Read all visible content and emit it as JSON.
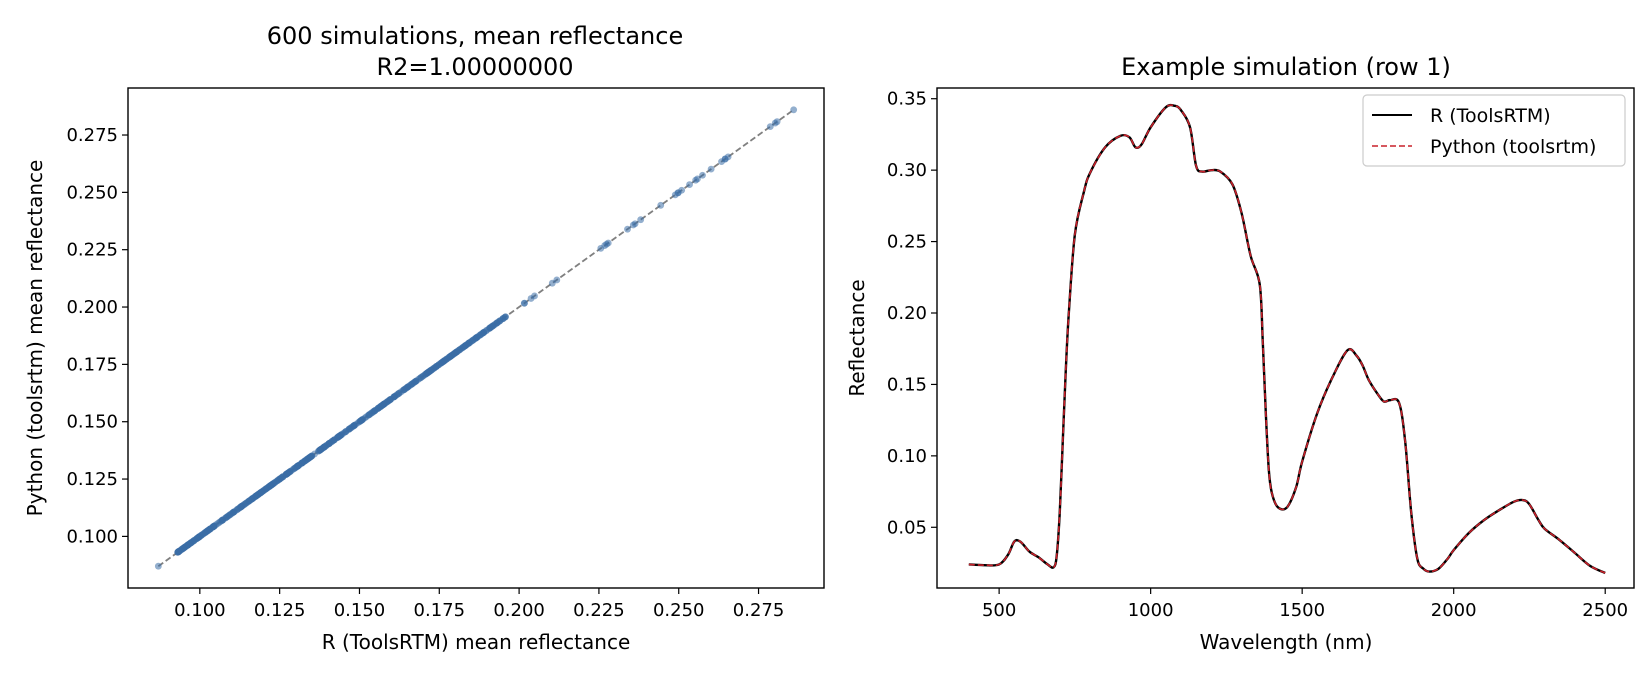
{
  "colors": {
    "scatter": "#3a6ea5",
    "diagonal": "#808080",
    "r_line": "#000000",
    "python_line": "#c8202a"
  },
  "chart_data": [
    {
      "type": "scatter",
      "title_line1": "600 simulations, mean reflectance",
      "title_line2": "R2=1.00000000",
      "xlabel": "R (ToolsRTM) mean reflectance",
      "ylabel": "Python (toolsrtm) mean reflectance",
      "xlim": [
        0.0775,
        0.2955
      ],
      "ylim": [
        0.0775,
        0.2955
      ],
      "xticks": [
        0.1,
        0.125,
        0.15,
        0.175,
        0.2,
        0.225,
        0.25,
        0.275
      ],
      "yticks": [
        0.1,
        0.125,
        0.15,
        0.175,
        0.2,
        0.225,
        0.25,
        0.275
      ],
      "tick_labels": [
        "0.100",
        "0.125",
        "0.150",
        "0.175",
        "0.200",
        "0.225",
        "0.250",
        "0.275"
      ],
      "n_points": 600,
      "x_range": [
        0.087,
        0.286
      ],
      "reference_line": "y = x (dashed)",
      "grid": false
    },
    {
      "type": "line",
      "title": "Example simulation (row 1)",
      "xlabel": "Wavelength (nm)",
      "ylabel": "Reflectance",
      "xlim": [
        295,
        2595
      ],
      "ylim": [
        0.0075,
        0.3575
      ],
      "xticks": [
        500,
        1000,
        1500,
        2000,
        2500
      ],
      "xtick_labels": [
        "500",
        "1000",
        "1500",
        "2000",
        "2500"
      ],
      "yticks": [
        0.05,
        0.1,
        0.15,
        0.2,
        0.25,
        0.3,
        0.35
      ],
      "ytick_labels": [
        "0.05",
        "0.10",
        "0.15",
        "0.20",
        "0.25",
        "0.30",
        "0.35"
      ],
      "legend_position": "upper right",
      "grid": false,
      "series": [
        {
          "name": "R (ToolsRTM)",
          "style": "solid"
        },
        {
          "name": "Python (toolsrtm)",
          "style": "dashed"
        }
      ],
      "x": [
        400,
        450,
        500,
        530,
        550,
        570,
        600,
        630,
        660,
        680,
        690,
        700,
        710,
        720,
        730,
        750,
        780,
        800,
        850,
        900,
        930,
        950,
        970,
        1000,
        1050,
        1080,
        1100,
        1130,
        1150,
        1170,
        1200,
        1230,
        1270,
        1300,
        1330,
        1360,
        1370,
        1380,
        1390,
        1400,
        1420,
        1450,
        1480,
        1500,
        1550,
        1600,
        1650,
        1680,
        1700,
        1720,
        1750,
        1770,
        1790,
        1820,
        1840,
        1860,
        1880,
        1900,
        1920,
        1950,
        1980,
        2000,
        2050,
        2100,
        2150,
        2200,
        2230,
        2250,
        2280,
        2300,
        2350,
        2400,
        2450,
        2500
      ],
      "y": [
        0.024,
        0.0235,
        0.024,
        0.031,
        0.04,
        0.04,
        0.033,
        0.029,
        0.024,
        0.022,
        0.03,
        0.06,
        0.11,
        0.16,
        0.2,
        0.255,
        0.285,
        0.298,
        0.316,
        0.324,
        0.323,
        0.316,
        0.318,
        0.33,
        0.344,
        0.345,
        0.342,
        0.33,
        0.303,
        0.299,
        0.3,
        0.299,
        0.29,
        0.27,
        0.24,
        0.22,
        0.18,
        0.13,
        0.09,
        0.074,
        0.064,
        0.064,
        0.078,
        0.096,
        0.13,
        0.155,
        0.174,
        0.17,
        0.163,
        0.153,
        0.143,
        0.138,
        0.139,
        0.137,
        0.11,
        0.06,
        0.028,
        0.021,
        0.019,
        0.021,
        0.028,
        0.034,
        0.046,
        0.055,
        0.062,
        0.068,
        0.069,
        0.066,
        0.055,
        0.049,
        0.041,
        0.032,
        0.023,
        0.018
      ]
    }
  ]
}
